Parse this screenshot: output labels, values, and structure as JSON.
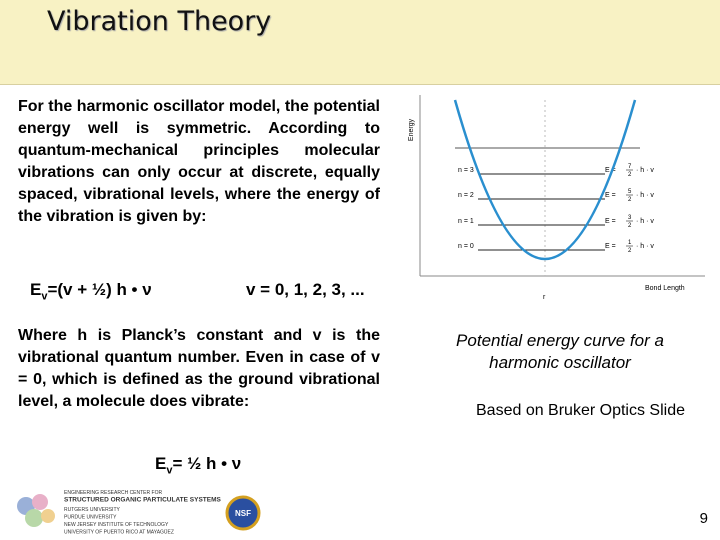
{
  "title": "Vibration Theory",
  "paragraph1": "For the harmonic oscillator model, the potential energy well is symmetric. According to quantum-mechanical principles molecular vibrations can only occur at discrete, equally spaced, vibrational levels, where the energy of the vibration is given by:",
  "equation1": {
    "symbol": "E",
    "subscript": "v",
    "rhs": "=(v + ½) h • ν",
    "condition": "v = 0, 1, 2, 3, ..."
  },
  "paragraph2": "Where h is Planck’s constant and v is the vibrational quantum number. Even in case of v = 0, which is defined as the ground vibrational level, a molecule does vibrate:",
  "equation2": {
    "symbol": "E",
    "subscript": "v",
    "rhs": "= ½ h • ν"
  },
  "figure": {
    "y_axis": "Energy",
    "x_axis": "Bond Length",
    "x_symbol": "r",
    "levels": [
      {
        "label": "n = 3",
        "prefix": "E =",
        "numerator": "7",
        "denominator": "2",
        "suffix": "· h · v"
      },
      {
        "label": "n = 2",
        "prefix": "E =",
        "numerator": "5",
        "denominator": "2",
        "suffix": "· h · v"
      },
      {
        "label": "n = 1",
        "prefix": "E =",
        "numerator": "3",
        "denominator": "2",
        "suffix": "· h · v"
      },
      {
        "label": "n = 0",
        "prefix": "E =",
        "numerator": "1",
        "denominator": "2",
        "suffix": "· h · v"
      }
    ]
  },
  "caption": "Potential energy curve for a harmonic oscillator",
  "credit": "Based on Bruker Optics Slide",
  "logo": {
    "lines": [
      "ENGINEERING RESEARCH CENTER FOR",
      "STRUCTURED ORGANIC PARTICULATE SYSTEMS",
      "RUTGERS UNIVERSITY",
      "PURDUE UNIVERSITY",
      "NEW JERSEY INSTITUTE OF TECHNOLOGY",
      "UNIVERSITY OF PUERTO RICO AT MAYAGÜEZ"
    ],
    "badge": "NSF"
  },
  "page_number": "9"
}
